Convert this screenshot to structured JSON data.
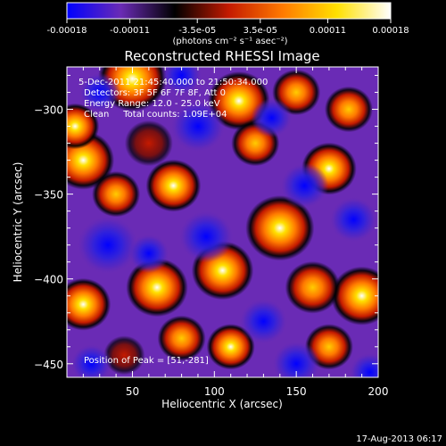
{
  "colorbar": {
    "ticks": [
      "-0.00018",
      "-0.00011",
      "-3.5e-05",
      "3.5e-05",
      "0.00011",
      "0.00018"
    ],
    "tick_values": [
      -0.00018,
      -0.00011,
      -3.5e-05,
      3.5e-05,
      0.00011,
      0.00018
    ],
    "range": [
      -0.00018,
      0.00018
    ],
    "units": "(photons cm⁻² s⁻¹ asec⁻²)",
    "colormap": [
      "#0000ff",
      "#6a2bb5",
      "#000000",
      "#c41a00",
      "#ff7a00",
      "#ffe000",
      "#ffffff"
    ]
  },
  "chart_data": {
    "type": "heatmap",
    "title": "Reconstructed RHESSI Image",
    "xlabel": "Heliocentric X (arcsec)",
    "ylabel": "Heliocentric Y (arcsec)",
    "xlim": [
      10,
      200
    ],
    "ylim": [
      -458,
      -275
    ],
    "xticks": [
      50,
      100,
      150,
      200
    ],
    "yticks": [
      -300,
      -350,
      -400,
      -450
    ],
    "annotations": {
      "time": "5-Dec-2011 21:45:40.000 to 21:50:34.000",
      "detectors": "Detectors: 3F 5F 6F 7F 8F, Att 0",
      "energy": "Energy Range: 12.0 - 25.0 keV",
      "clean": "Clean     Total counts: 1.09E+04",
      "peak": "Position of Peak = [51,-281]"
    },
    "peak": [
      51,
      -281
    ],
    "blobs": [
      {
        "x": 50,
        "y": -282,
        "v": 1.0,
        "r": 20
      },
      {
        "x": 20,
        "y": -330,
        "v": 1.0,
        "r": 18
      },
      {
        "x": 15,
        "y": -310,
        "v": 0.9,
        "r": 14
      },
      {
        "x": 75,
        "y": -345,
        "v": 0.95,
        "r": 16
      },
      {
        "x": 115,
        "y": -295,
        "v": 0.85,
        "r": 18
      },
      {
        "x": 125,
        "y": -320,
        "v": 0.7,
        "r": 14
      },
      {
        "x": 170,
        "y": -335,
        "v": 0.9,
        "r": 16
      },
      {
        "x": 182,
        "y": -300,
        "v": 0.8,
        "r": 14
      },
      {
        "x": 150,
        "y": -290,
        "v": 0.7,
        "r": 14
      },
      {
        "x": 60,
        "y": -320,
        "v": 0.5,
        "r": 14
      },
      {
        "x": 40,
        "y": -350,
        "v": 0.6,
        "r": 14
      },
      {
        "x": 140,
        "y": -370,
        "v": 0.85,
        "r": 20
      },
      {
        "x": 105,
        "y": -395,
        "v": 0.95,
        "r": 18
      },
      {
        "x": 65,
        "y": -405,
        "v": 0.85,
        "r": 18
      },
      {
        "x": 20,
        "y": -415,
        "v": 1.0,
        "r": 16
      },
      {
        "x": 190,
        "y": -410,
        "v": 1.0,
        "r": 18
      },
      {
        "x": 160,
        "y": -405,
        "v": 0.8,
        "r": 16
      },
      {
        "x": 110,
        "y": -440,
        "v": 1.0,
        "r": 14
      },
      {
        "x": 80,
        "y": -435,
        "v": 0.6,
        "r": 14
      },
      {
        "x": 170,
        "y": -440,
        "v": 0.6,
        "r": 14
      },
      {
        "x": 45,
        "y": -445,
        "v": 0.4,
        "r": 12
      },
      {
        "x": 35,
        "y": -380,
        "v": -0.7,
        "r": 18
      },
      {
        "x": 90,
        "y": -310,
        "v": -0.75,
        "r": 16
      },
      {
        "x": 95,
        "y": -375,
        "v": -0.7,
        "r": 16
      },
      {
        "x": 155,
        "y": -345,
        "v": -0.6,
        "r": 14
      },
      {
        "x": 185,
        "y": -365,
        "v": -0.7,
        "r": 14
      },
      {
        "x": 130,
        "y": -425,
        "v": -0.6,
        "r": 14
      },
      {
        "x": 150,
        "y": -450,
        "v": -0.6,
        "r": 14
      },
      {
        "x": 60,
        "y": -385,
        "v": -0.5,
        "r": 12
      },
      {
        "x": 25,
        "y": -450,
        "v": -0.4,
        "r": 12
      },
      {
        "x": 195,
        "y": -455,
        "v": -0.6,
        "r": 12
      },
      {
        "x": 135,
        "y": -305,
        "v": -0.5,
        "r": 12
      },
      {
        "x": 30,
        "y": -290,
        "v": -0.45,
        "r": 12
      },
      {
        "x": 80,
        "y": -280,
        "v": -0.4,
        "r": 12
      }
    ]
  },
  "footer": {
    "timestamp": "17-Aug-2013 06:17"
  }
}
